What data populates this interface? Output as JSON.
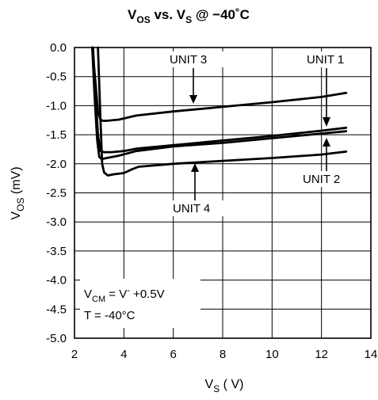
{
  "chart_data": {
    "type": "line",
    "title": {
      "pre": "V",
      "sub1": "OS",
      "mid": " vs. V",
      "sub2": "S",
      "post": " @ −40˚C"
    },
    "xlabel": {
      "main": "V",
      "sub": "S",
      "unit": " ( V)"
    },
    "ylabel": {
      "main": "V",
      "sub": "OS",
      "unit": " (mV)"
    },
    "xlim": [
      2,
      14
    ],
    "ylim": [
      -5.0,
      0.0
    ],
    "xticks": [
      "2",
      "4",
      "6",
      "8",
      "10",
      "12",
      "14"
    ],
    "yticks": [
      "0.0",
      "-0.5",
      "-1.0",
      "-1.5",
      "-2.0",
      "-2.5",
      "-3.0",
      "-3.5",
      "-4.0",
      "-4.5",
      "-5.0"
    ],
    "grid": true,
    "series": [
      {
        "name": "UNIT 3",
        "x": [
          2.72,
          2.85,
          2.95,
          3.05,
          3.15,
          3.3,
          3.8,
          4.5,
          6,
          8,
          10,
          12,
          13
        ],
        "y": [
          0.0,
          -0.6,
          -1.1,
          -1.24,
          -1.26,
          -1.26,
          -1.24,
          -1.17,
          -1.1,
          -1.02,
          -0.94,
          -0.85,
          -0.78
        ]
      },
      {
        "name": "UNIT 1",
        "x": [
          2.75,
          2.85,
          2.95,
          3.05,
          3.2,
          3.5,
          4.0,
          4.5,
          6,
          8,
          10,
          12,
          13
        ],
        "y": [
          0.0,
          -0.8,
          -1.5,
          -1.78,
          -1.8,
          -1.8,
          -1.78,
          -1.74,
          -1.68,
          -1.6,
          -1.52,
          -1.43,
          -1.38
        ]
      },
      {
        "name": "UNIT 2",
        "x": [
          2.72,
          2.82,
          2.92,
          3.0,
          3.1,
          3.3,
          3.8,
          4.5,
          6,
          8,
          10,
          12,
          13
        ],
        "y": [
          0.0,
          -0.9,
          -1.6,
          -1.88,
          -1.92,
          -1.9,
          -1.86,
          -1.78,
          -1.7,
          -1.64,
          -1.56,
          -1.48,
          -1.44
        ]
      },
      {
        "name": "UNIT 4",
        "x": [
          2.95,
          3.05,
          3.12,
          3.2,
          3.35,
          3.6,
          4.0,
          4.3,
          4.6,
          6,
          8,
          10,
          12,
          13
        ],
        "y": [
          0.0,
          -1.2,
          -2.0,
          -2.15,
          -2.2,
          -2.18,
          -2.16,
          -2.1,
          -2.05,
          -2.0,
          -1.95,
          -1.9,
          -1.84,
          -1.79
        ]
      }
    ],
    "annotations": {
      "unit3": "UNIT 3",
      "unit1": "UNIT 1",
      "unit2": "UNIT 2",
      "unit4": "UNIT 4",
      "cond1_main": "V",
      "cond1_sub": "CM",
      "cond1_mid": " = V",
      "cond1_sup": "-",
      "cond1_post": " +0.5V",
      "cond2": "T = -40°C"
    }
  }
}
